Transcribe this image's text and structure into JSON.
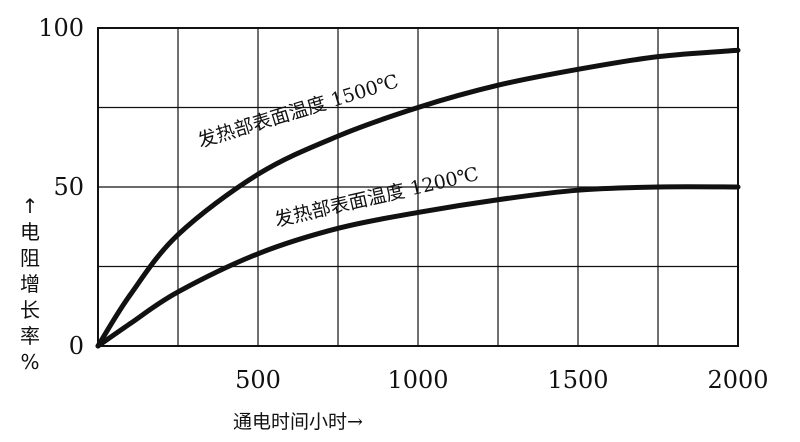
{
  "chart_data": {
    "type": "line",
    "xlabel": "通电时间小时→",
    "ylabel_chars": [
      "↑",
      "电",
      "阻",
      "增",
      "长",
      "率",
      "%"
    ],
    "xlim": [
      0,
      2000
    ],
    "ylim": [
      0,
      100
    ],
    "x_ticks": [
      500,
      1000,
      1500,
      2000
    ],
    "x_tick_labels": [
      "500",
      "1000",
      "1500",
      "2000"
    ],
    "x_gridlines": [
      250,
      500,
      750,
      1000,
      1250,
      1500,
      1750,
      2000
    ],
    "y_ticks": [
      0,
      50,
      100
    ],
    "y_tick_labels": [
      "0",
      "50",
      "100"
    ],
    "y_gridlines": [
      25,
      50,
      75,
      100
    ],
    "grid": true,
    "series": [
      {
        "name": "发热部表面温度 1500℃",
        "x": [
          0,
          100,
          250,
          500,
          750,
          1000,
          1250,
          1500,
          1750,
          2000
        ],
        "y": [
          0,
          16,
          35,
          54,
          66,
          75,
          82,
          87,
          91,
          93
        ]
      },
      {
        "name": "发热部表面温度 1200℃",
        "x": [
          0,
          100,
          250,
          500,
          750,
          1000,
          1250,
          1500,
          1750,
          2000
        ],
        "y": [
          0,
          7,
          17,
          29,
          37,
          42,
          46,
          49,
          50,
          50
        ]
      }
    ],
    "colors": {
      "line": "#111111",
      "grid": "#111111",
      "background": "#ffffff"
    }
  }
}
